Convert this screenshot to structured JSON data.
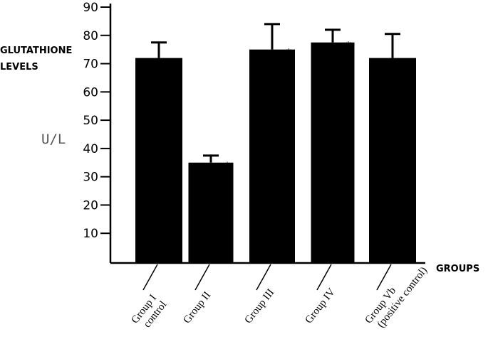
{
  "chart_data": {
    "type": "bar",
    "title": "",
    "ylabel_line1": "GLUTATHIONE",
    "ylabel_line2": "LEVELS",
    "unit_label": "U/L",
    "xlabel": "GROUPS",
    "ylim": [
      0,
      90
    ],
    "yticks": [
      10,
      20,
      30,
      40,
      50,
      60,
      70,
      80,
      90
    ],
    "categories": [
      {
        "line1": "Group I",
        "line2": "control"
      },
      {
        "line1": "Group II",
        "line2": ""
      },
      {
        "line1": "Group III",
        "line2": ""
      },
      {
        "line1": "Group IV",
        "line2": ""
      },
      {
        "line1": "Group Vb",
        "line2": "(positive control)"
      }
    ],
    "values": [
      72,
      35,
      75,
      77.5,
      72
    ],
    "error_upper": [
      77.5,
      37.5,
      84,
      82,
      80.5
    ],
    "significance": [
      "",
      "*",
      "*",
      "*",
      ""
    ],
    "bar_color": "#000000"
  }
}
